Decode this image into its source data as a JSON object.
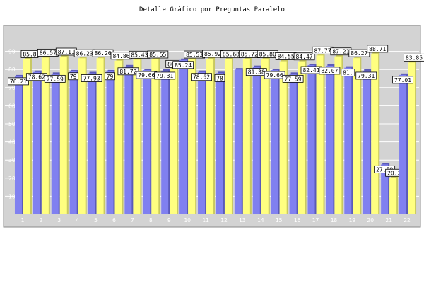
{
  "chart_data": {
    "type": "bar",
    "title": "Detalle Gráfico por Preguntas Paralelo",
    "xlabel": "",
    "ylabel": "",
    "categories": [
      "1",
      "2",
      "3",
      "4",
      "5",
      "6",
      "7",
      "8",
      "9",
      "10",
      "11",
      "12",
      "13",
      "14",
      "15",
      "16",
      "17",
      "18",
      "19",
      "20",
      "21",
      "22"
    ],
    "series": [
      {
        "values": [
          76.21,
          78.62,
          77.59,
          79.0,
          77.93,
          79.0,
          81.72,
          79.66,
          79.31,
          85.24,
          78.62,
          78.0,
          80.0,
          81.38,
          79.66,
          77.59,
          82.41,
          82.07,
          81.0,
          79.31,
          27.59,
          77.01
        ]
      },
      {
        "values": [
          85.8,
          86.57,
          87.11,
          86.23,
          86.26,
          84.86,
          85.43,
          85.55,
          80.34,
          85.53,
          85.92,
          85.68,
          85.72,
          85.8,
          84.55,
          84.47,
          87.77,
          87.21,
          86.27,
          88.71,
          20.21,
          83.85
        ]
      }
    ],
    "shown_labels": {
      "purple": [
        "76.21",
        "78.62",
        "77.59",
        "79",
        "77.93",
        "79",
        "81.72",
        "79.66",
        "79.31",
        "85.24",
        "78.62",
        "78",
        "",
        "81.38",
        "79.66",
        "77.59",
        "82.41",
        "82.07",
        "81.",
        "79.31",
        "27.59",
        "77.01"
      ],
      "yellow": [
        "85.8",
        "86.57",
        "87.11",
        "86.23",
        "86.26",
        "84.86",
        "85.43",
        "85.55",
        "80.34",
        "85.53",
        "85.92",
        "85.68",
        "85.72",
        "85.80",
        "84.55",
        "84.47",
        "87.77",
        "87.21",
        "86.27",
        "88.71",
        "20.21",
        "83.85"
      ]
    },
    "ylim": [
      0,
      100
    ],
    "yticks": [
      10,
      20,
      30,
      40,
      50,
      60,
      70,
      80,
      90
    ],
    "grid": true,
    "legend": "none",
    "colors": {
      "series_a": "#8080f0",
      "series_b": "#ffff80",
      "plot_bg": "#d3d3d3",
      "grid": "#ffffff",
      "label_box": "#ffffff"
    }
  }
}
